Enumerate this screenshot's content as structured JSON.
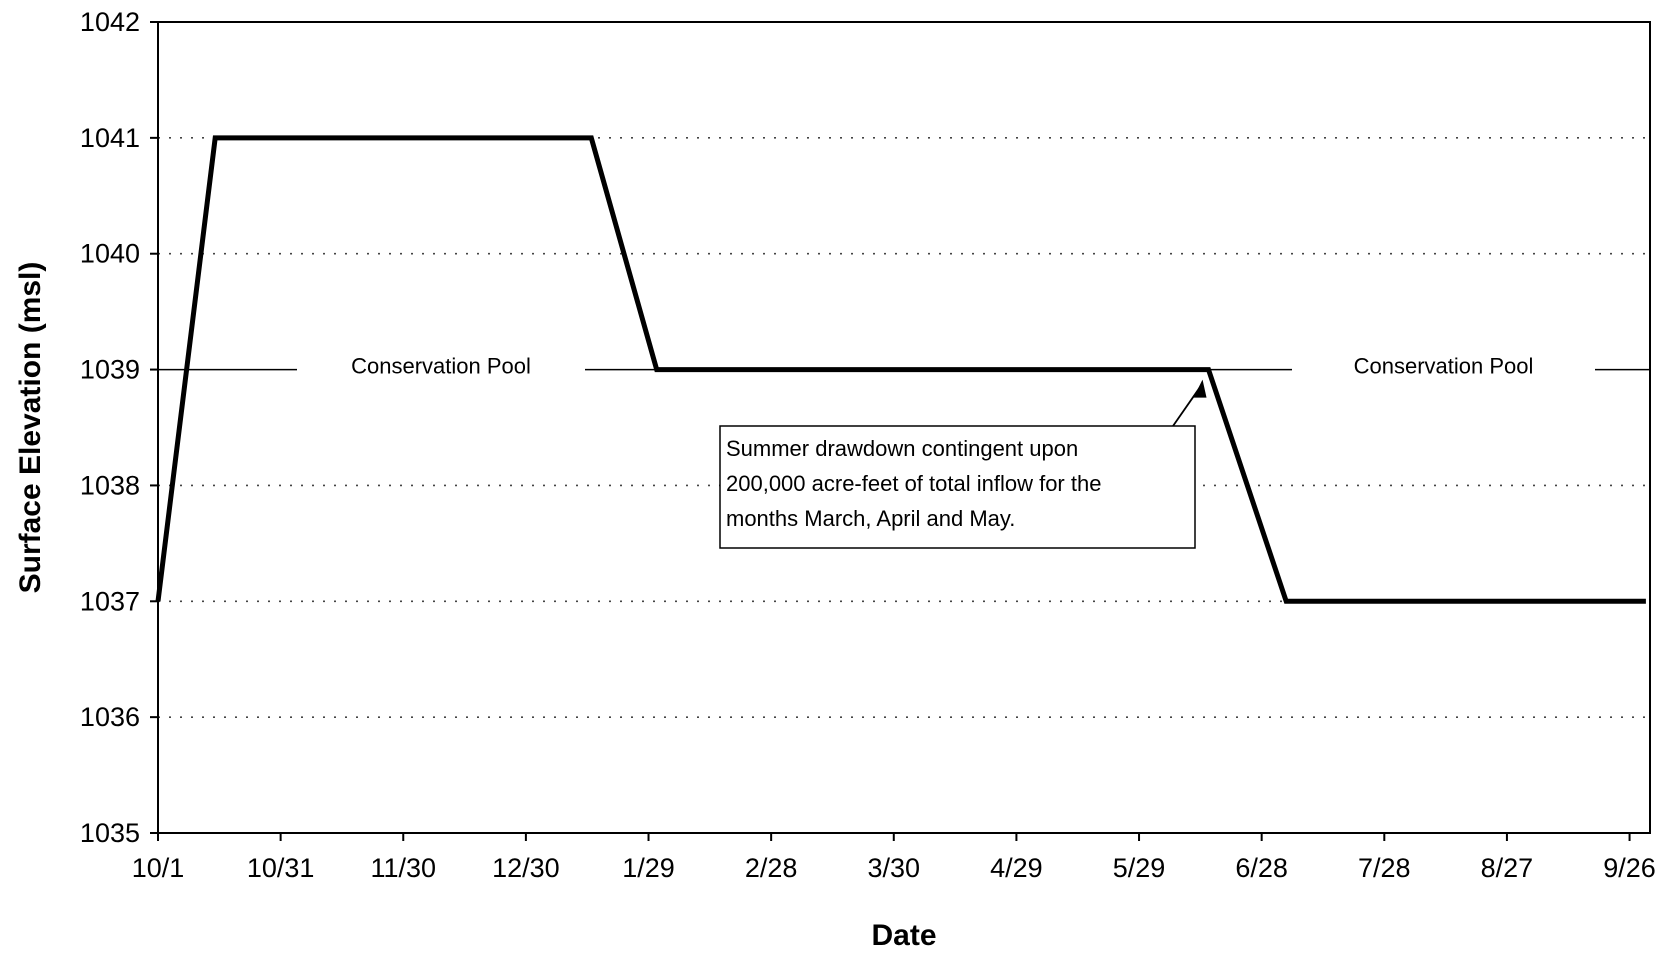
{
  "chart_data": {
    "type": "line",
    "title": "",
    "xlabel": "Date",
    "ylabel": "Surface Elevation (msl)",
    "ylim": [
      1035,
      1042
    ],
    "xlim": [
      "10/1",
      "10/1"
    ],
    "grid": "dotted horizontal",
    "legend": "none",
    "x_tick_labels": [
      "10/1",
      "10/31",
      "11/30",
      "12/30",
      "1/29",
      "2/28",
      "3/30",
      "4/29",
      "5/29",
      "6/28",
      "7/28",
      "8/27",
      "9/26"
    ],
    "y_tick_labels": [
      "1035",
      "1036",
      "1037",
      "1038",
      "1039",
      "1040",
      "1041",
      "1042"
    ],
    "series": [
      {
        "points": [
          {
            "x": "10/1",
            "y": 1037
          },
          {
            "x": "10/15",
            "y": 1041
          },
          {
            "x": "1/15",
            "y": 1041
          },
          {
            "x": "1/31",
            "y": 1039
          },
          {
            "x": "6/15",
            "y": 1039
          },
          {
            "x": "7/4",
            "y": 1037
          },
          {
            "x": "9/30",
            "y": 1037
          }
        ]
      }
    ],
    "reference_lines": [
      {
        "y": 1039,
        "labels": [
          "Conservation Pool",
          "Conservation Pool"
        ]
      }
    ],
    "annotations": [
      {
        "lines": [
          "Summer drawdown contingent upon",
          "200,000 acre-feet of total inflow for the",
          "months March, April and May."
        ],
        "points_to": {
          "x": "6/15",
          "y": 1039
        }
      }
    ]
  },
  "colors": {
    "line": "#000000",
    "background": "#ffffff",
    "grid": "#444444"
  }
}
